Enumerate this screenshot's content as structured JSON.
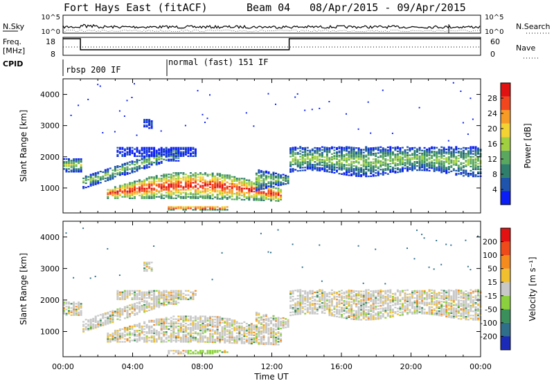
{
  "header": {
    "title": "Fort Hays East (fitACF)",
    "beam": "Beam 04",
    "date_range": "08/Apr/2015 - 09/Apr/2015"
  },
  "chart_data": [
    {
      "type": "line",
      "panel": "noise",
      "left_label": "N.Sky",
      "right_label": "N.Search",
      "y_ticks_left": [
        "10^5",
        "10^0"
      ],
      "y_ticks_right": [
        "10^5",
        "10^0"
      ],
      "style_notes": "N.Sky solid dense trace, N.Search dotted"
    },
    {
      "type": "line",
      "panel": "frequency",
      "left_label": "Freq.",
      "left_unit": "[MHz]",
      "right_label": "Nave",
      "y_ticks_left": [
        "18",
        "8"
      ],
      "y_ticks_right": [
        "60",
        "0"
      ],
      "freq_steps": [
        {
          "t0": 0.0,
          "t1": 1.0,
          "level": "high"
        },
        {
          "t0": 1.0,
          "t1": 13.0,
          "level": "low"
        },
        {
          "t0": 13.0,
          "t1": 24.0,
          "level": "high"
        }
      ],
      "nave_dotted": true
    },
    {
      "type": "text",
      "panel": "cpid",
      "label": "CPID",
      "segments": [
        {
          "t0": 0.0,
          "text": "rbsp 200 IF"
        },
        {
          "t0": 6.0,
          "text": "normal (fast) 151 IF"
        }
      ]
    },
    {
      "type": "heatmap",
      "panel": "power",
      "ylabel": "Slant Range [km]",
      "xlabel": "Time UT",
      "ylim": [
        200,
        4500
      ],
      "y_ticks": [
        1000,
        2000,
        3000,
        4000
      ],
      "x_ticks": [
        "00:00",
        "04:00",
        "08:00",
        "12:00",
        "16:00",
        "20:00",
        "00:00"
      ],
      "colorbar": {
        "label": "Power [dB]",
        "ticks": [
          "28",
          "24",
          "20",
          "16",
          "12",
          "8",
          "4"
        ],
        "colors": [
          "#0a1ef5",
          "#1f54ad",
          "#2f7f6c",
          "#5aa860",
          "#a0d040",
          "#f3d233",
          "#f79b27",
          "#f2461f",
          "#e01212"
        ]
      }
    },
    {
      "type": "heatmap",
      "panel": "velocity",
      "ylabel": "Slant Range [km]",
      "xlabel": "Time UT",
      "ylim": [
        200,
        4500
      ],
      "y_ticks": [
        1000,
        2000,
        3000,
        4000
      ],
      "x_ticks": [
        "00:00",
        "04:00",
        "08:00",
        "12:00",
        "16:00",
        "20:00",
        "00:00"
      ],
      "colorbar": {
        "label": "Velocity [m s⁻¹]",
        "ticks": [
          "200",
          "100",
          "50",
          "15",
          "-15",
          "-50",
          "-100",
          "-200"
        ],
        "colors": [
          "#1c2ab8",
          "#2f6f8a",
          "#3a8f5a",
          "#8bd13d",
          "#c8c8c8",
          "#f0c030",
          "#f58a1f",
          "#ef4a1a",
          "#e21212"
        ]
      }
    }
  ]
}
